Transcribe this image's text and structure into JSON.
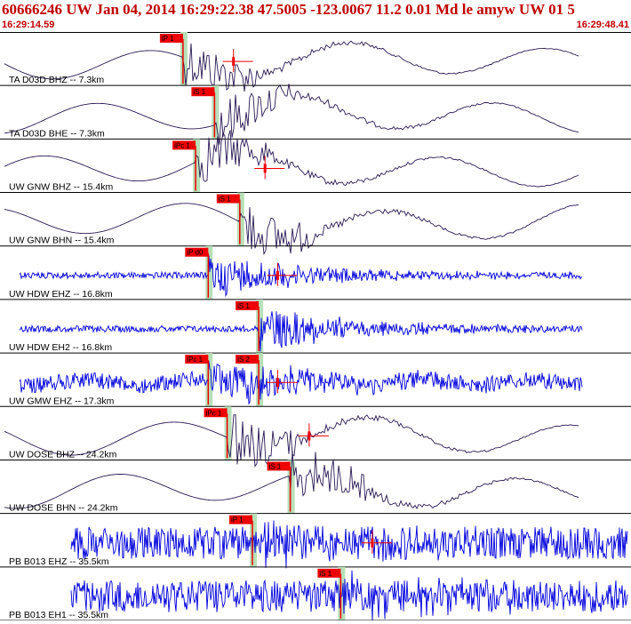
{
  "header": {
    "title": "60666246 UW Jan 04, 2014 16:29:22.38   47.5005 -123.0067 11.2 0.01 Md le amyw UW 01   5",
    "start_time": "16:29:14.59",
    "end_time": "16:29:48.41"
  },
  "colors": {
    "header_text": "#c00000",
    "trace_dark": "#2a1a55",
    "trace_blue": "#0000dd",
    "pick_red": "#ee0000",
    "shade_green": "#b8e0b8",
    "divider": "#000000"
  },
  "chart_data": {
    "type": "waveform",
    "x_range": [
      "16:29:14.59",
      "16:29:48.41"
    ],
    "traces": [
      {
        "label": "TA D03D BHZ -- 7.3km",
        "kind": "long",
        "color": "dark",
        "picks": [
          {
            "label": "iP 1",
            "t": 0.29
          }
        ],
        "amplitude_pick": 0.37
      },
      {
        "label": "TA D03D BHE -- 7.3km",
        "kind": "long",
        "color": "dark",
        "picks": [
          {
            "label": "iS 1",
            "t": 0.34
          }
        ]
      },
      {
        "label": "UW GNW BHZ -- 15.4km",
        "kind": "long",
        "color": "dark",
        "picks": [
          {
            "label": "iPc 1",
            "t": 0.31
          }
        ],
        "amplitude_pick": 0.42
      },
      {
        "label": "UW GNW BHN -- 15.4km",
        "kind": "long",
        "color": "dark",
        "picks": [
          {
            "label": "iS 1",
            "t": 0.38
          }
        ]
      },
      {
        "label": "UW HDW EHZ -- 16.8km",
        "kind": "noise",
        "color": "blue",
        "picks": [
          {
            "label": "iP d0",
            "t": 0.33
          }
        ],
        "amplitude_pick": 0.44
      },
      {
        "label": "UW HDW EH2 -- 16.8km",
        "kind": "noise",
        "color": "blue",
        "picks": [
          {
            "label": "iS 1",
            "t": 0.41
          }
        ]
      },
      {
        "label": "UW GMW EHZ -- 17.3km",
        "kind": "noisy",
        "color": "blue",
        "picks": [
          {
            "label": "iPc 1",
            "t": 0.33
          },
          {
            "label": "iS 2",
            "t": 0.41
          }
        ],
        "amplitude_pick": 0.44
      },
      {
        "label": "UW DOSE BHZ -- 24.2km",
        "kind": "long",
        "color": "dark",
        "picks": [
          {
            "label": "iPc 1",
            "t": 0.36
          }
        ],
        "amplitude_pick": 0.49
      },
      {
        "label": "UW DOSE BHN -- 24.2km",
        "kind": "long",
        "color": "dark",
        "picks": [
          {
            "label": "iS 1",
            "t": 0.46
          }
        ]
      },
      {
        "label": "PB B013 EHZ -- 35.5km",
        "kind": "bignoise",
        "color": "blue",
        "picks": [
          {
            "label": "iP 1",
            "t": 0.4
          }
        ],
        "amplitude_pick": 0.59
      },
      {
        "label": "PB B013 EH1 -- 35.5km",
        "kind": "bignoise",
        "color": "blue",
        "picks": [
          {
            "label": "iS 1",
            "t": 0.54
          }
        ]
      }
    ]
  }
}
